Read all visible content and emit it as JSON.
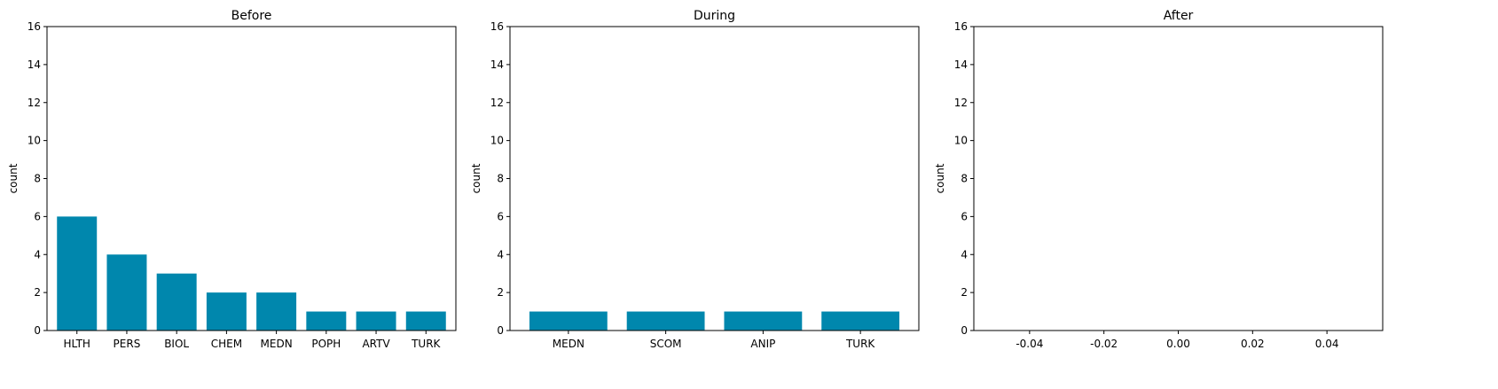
{
  "chart_data": [
    {
      "type": "bar",
      "title": "Before",
      "ylabel": "count",
      "xlabel": "",
      "ylim": [
        0,
        16
      ],
      "yticks": [
        0,
        2,
        4,
        6,
        8,
        10,
        12,
        14,
        16
      ],
      "categories": [
        "HLTH",
        "PERS",
        "BIOL",
        "CHEM",
        "MEDN",
        "POPH",
        "ARTV",
        "TURK"
      ],
      "values": [
        6,
        4,
        3,
        2,
        2,
        1,
        1,
        1
      ],
      "color": "#0087AD",
      "grid": false
    },
    {
      "type": "bar",
      "title": "During",
      "ylabel": "count",
      "xlabel": "",
      "ylim": [
        0,
        16
      ],
      "yticks": [
        0,
        2,
        4,
        6,
        8,
        10,
        12,
        14,
        16
      ],
      "categories": [
        "MEDN",
        "SCOM",
        "ANIP",
        "TURK"
      ],
      "values": [
        1,
        1,
        1,
        1
      ],
      "color": "#0087AD",
      "grid": false
    },
    {
      "type": "bar",
      "title": "After",
      "ylabel": "count",
      "xlabel": "",
      "ylim": [
        0,
        16
      ],
      "yticks": [
        0,
        2,
        4,
        6,
        8,
        10,
        12,
        14,
        16
      ],
      "xlim": [
        -0.055,
        0.055
      ],
      "xticks": [
        "-0.04",
        "-0.02",
        "0.00",
        "0.02",
        "0.04"
      ],
      "categories": [],
      "values": [],
      "color": "#0087AD",
      "grid": false
    }
  ]
}
